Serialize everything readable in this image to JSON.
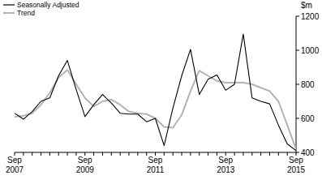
{
  "chart_data": {
    "type": "line",
    "y_label": "$m",
    "categories": [
      "Sep 2007",
      null,
      null,
      null,
      null,
      null,
      null,
      null,
      "Sep 2009",
      null,
      null,
      null,
      null,
      null,
      null,
      null,
      "Sep 2011",
      null,
      null,
      null,
      null,
      null,
      null,
      null,
      "Sep 2013",
      null,
      null,
      null,
      null,
      null,
      null,
      null,
      "Sep 2015"
    ],
    "series": [
      {
        "name": "Seasonally Adjusted",
        "color": "#000000",
        "values": [
          630,
          595,
          640,
          700,
          720,
          850,
          940,
          770,
          610,
          680,
          740,
          690,
          630,
          625,
          625,
          580,
          600,
          440,
          660,
          850,
          1005,
          740,
          830,
          855,
          765,
          800,
          1095,
          720,
          700,
          685,
          560,
          450,
          410
        ]
      },
      {
        "name": "Trend",
        "color": "#b3b3b3",
        "values": [
          610,
          615,
          630,
          680,
          750,
          840,
          885,
          800,
          720,
          670,
          700,
          710,
          680,
          640,
          630,
          625,
          600,
          550,
          545,
          620,
          760,
          880,
          850,
          820,
          810,
          810,
          810,
          800,
          780,
          760,
          700,
          560,
          420
        ]
      }
    ],
    "ylim": [
      400,
      1200
    ],
    "yticks": [
      400,
      600,
      800,
      1000,
      1200
    ],
    "grid": false,
    "legend": "top-left"
  }
}
